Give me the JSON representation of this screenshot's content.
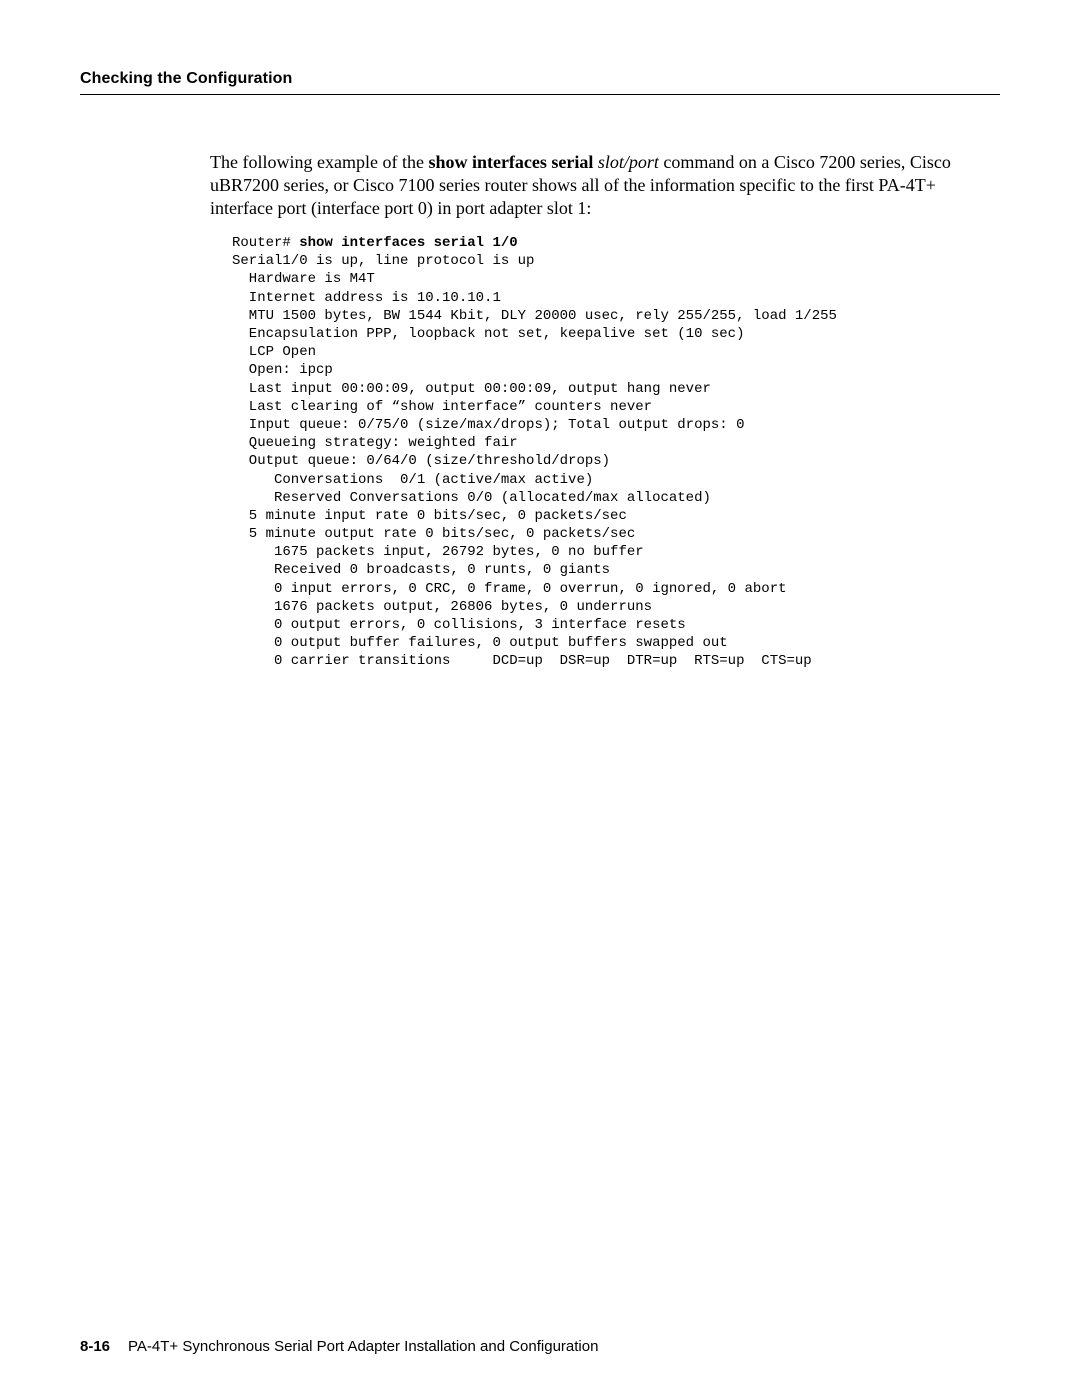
{
  "header": {
    "section_title": "Checking the Configuration"
  },
  "body": {
    "para1_pre": "The following example of the ",
    "para1_cmd": "show interfaces serial",
    "para1_mid1": " ",
    "para1_arg": "slot/port",
    "para1_post": " command on a Cisco 7200 series, Cisco uBR7200 series, or Cisco 7100 series router shows all of the information specific to the first PA-4T+ interface port (interface port 0) in port adapter slot 1:"
  },
  "cli": {
    "prompt": "Router# ",
    "command": "show interfaces serial 1/0",
    "output": "Serial1/0 is up, line protocol is up\n  Hardware is M4T\n  Internet address is 10.10.10.1\n  MTU 1500 bytes, BW 1544 Kbit, DLY 20000 usec, rely 255/255, load 1/255\n  Encapsulation PPP, loopback not set, keepalive set (10 sec)\n  LCP Open\n  Open: ipcp\n  Last input 00:00:09, output 00:00:09, output hang never\n  Last clearing of “show interface” counters never\n  Input queue: 0/75/0 (size/max/drops); Total output drops: 0\n  Queueing strategy: weighted fair\n  Output queue: 0/64/0 (size/threshold/drops)\n     Conversations  0/1 (active/max active)\n     Reserved Conversations 0/0 (allocated/max allocated)\n  5 minute input rate 0 bits/sec, 0 packets/sec\n  5 minute output rate 0 bits/sec, 0 packets/sec\n     1675 packets input, 26792 bytes, 0 no buffer\n     Received 0 broadcasts, 0 runts, 0 giants\n     0 input errors, 0 CRC, 0 frame, 0 overrun, 0 ignored, 0 abort\n     1676 packets output, 26806 bytes, 0 underruns\n     0 output errors, 0 collisions, 3 interface resets\n     0 output buffer failures, 0 output buffers swapped out\n     0 carrier transitions     DCD=up  DSR=up  DTR=up  RTS=up  CTS=up"
  },
  "footer": {
    "page_number": "8-16",
    "doc_title": "PA-4T+ Synchronous Serial Port Adapter Installation and Configuration"
  }
}
